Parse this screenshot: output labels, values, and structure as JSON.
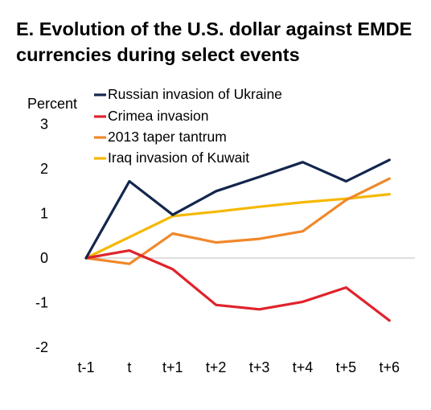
{
  "chart_data": {
    "type": "line",
    "title": "E. Evolution of the U.S. dollar against EMDE currencies during select events",
    "ylabel": "Percent",
    "xlabel": "",
    "ylim": [
      -2,
      3
    ],
    "yticks": [
      3,
      2,
      1,
      0,
      -1,
      -2
    ],
    "categories": [
      "t-1",
      "t",
      "t+1",
      "t+2",
      "t+3",
      "t+4",
      "t+5",
      "t+6"
    ],
    "grid": false,
    "legend_position": "top-right",
    "series": [
      {
        "name": "Russian invasion of Ukraine",
        "color": "#13264d",
        "values": [
          0,
          1.72,
          0.97,
          1.5,
          1.82,
          2.15,
          1.72,
          2.2
        ]
      },
      {
        "name": "Crimea invasion",
        "color": "#e0232b",
        "values": [
          0,
          0.17,
          -0.25,
          -1.05,
          -1.15,
          -0.98,
          -0.66,
          -1.4
        ]
      },
      {
        "name": "2013 taper tantrum",
        "color": "#f0882a",
        "values": [
          0,
          -0.13,
          0.55,
          0.35,
          0.43,
          0.6,
          1.3,
          1.78
        ]
      },
      {
        "name": "Iraq invasion of Kuwait",
        "color": "#f5b800",
        "values": [
          0,
          0.47,
          0.94,
          1.04,
          1.15,
          1.25,
          1.33,
          1.43
        ]
      }
    ]
  }
}
